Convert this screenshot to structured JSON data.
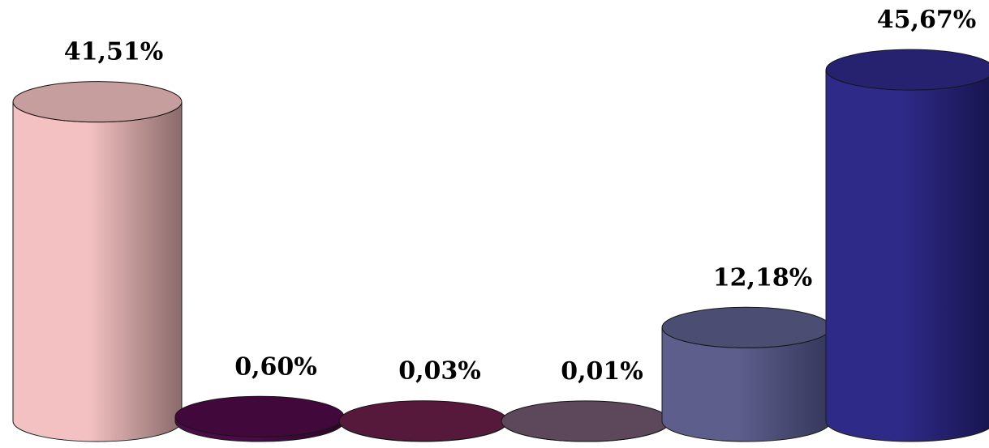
{
  "chart_data": {
    "type": "bar",
    "style": "3d-cylinder",
    "ylim": [
      0,
      50
    ],
    "grid": false,
    "legend": "none",
    "series": [
      {
        "values": [
          41.51,
          0.6,
          0.03,
          0.01,
          12.18,
          45.67
        ],
        "value_labels": [
          "41,51%",
          "0,60%",
          "0,03%",
          "0,01%",
          "12,18%",
          "45,67%"
        ],
        "colors": [
          "#f3c1c1",
          "#4e0a48",
          "#6a1e48",
          "#72586f",
          "#5d5e8c",
          "#2e2a88"
        ],
        "shade_colors": [
          "#8a6a6a",
          "#2a0526",
          "#3a1028",
          "#3f3140",
          "#35365a",
          "#17144d"
        ]
      }
    ]
  }
}
